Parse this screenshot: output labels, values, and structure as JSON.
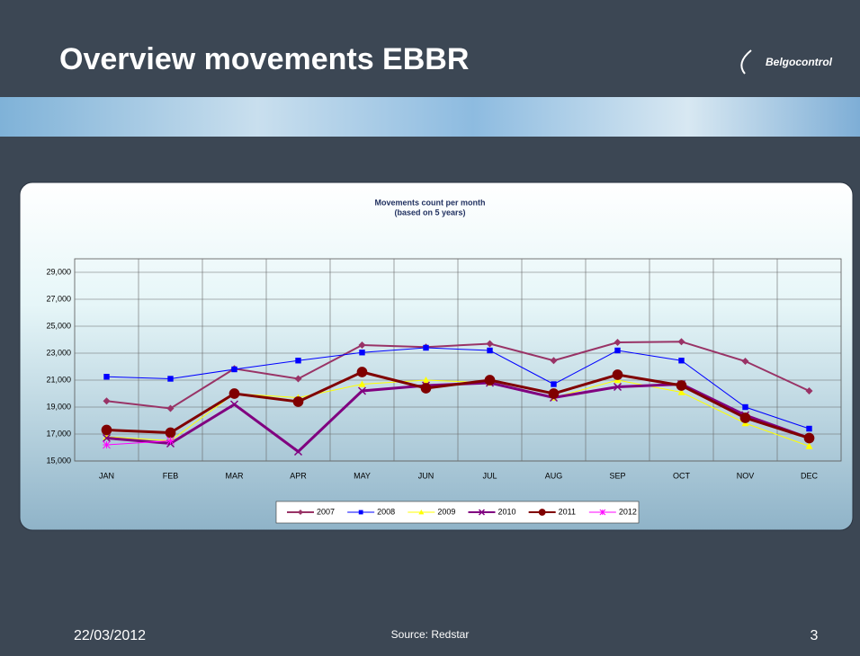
{
  "slide": {
    "title": "Overview movements EBBR",
    "logo": "Belgocontrol",
    "date": "22/03/2012",
    "source": "Source: Redstar",
    "page": "3"
  },
  "chart_data": {
    "type": "line",
    "title": "Movements count per month",
    "subtitle": "(based on 5 years)",
    "categories": [
      "JAN",
      "FEB",
      "MAR",
      "APR",
      "MAY",
      "JUN",
      "JUL",
      "AUG",
      "SEP",
      "OCT",
      "NOV",
      "DEC"
    ],
    "ylim": [
      15000,
      30000
    ],
    "yticks": [
      {
        "value": 15000,
        "label": "15,000"
      },
      {
        "value": 17000,
        "label": "17,000"
      },
      {
        "value": 19000,
        "label": "19,000"
      },
      {
        "value": 21000,
        "label": "21,000"
      },
      {
        "value": 23000,
        "label": "23,000"
      },
      {
        "value": 25000,
        "label": "25,000"
      },
      {
        "value": 27000,
        "label": "27,000"
      },
      {
        "value": 29000,
        "label": "29,000"
      }
    ],
    "grid": true,
    "legend": "bottom",
    "series": [
      {
        "name": "2007",
        "color": "#993366",
        "marker": "diamond",
        "line_width": 2,
        "values": [
          19450,
          18900,
          21850,
          21100,
          23600,
          23450,
          23700,
          22450,
          23800,
          23850,
          22400,
          20200
        ]
      },
      {
        "name": "2008",
        "color": "#0000ff",
        "marker": "square",
        "line_width": 1,
        "values": [
          21250,
          21100,
          21800,
          22450,
          23050,
          23400,
          23200,
          20700,
          23200,
          22450,
          19000,
          17400
        ]
      },
      {
        "name": "2009",
        "color": "#ffff00",
        "marker": "triangle",
        "line_width": 1,
        "values": [
          16800,
          16500,
          20000,
          19700,
          20700,
          21000,
          20800,
          19700,
          21000,
          20100,
          17800,
          16100
        ]
      },
      {
        "name": "2010",
        "color": "#800080",
        "marker": "x",
        "line_width": 3,
        "values": [
          16700,
          16300,
          19200,
          15700,
          20200,
          20600,
          20800,
          19700,
          20500,
          20700,
          18400,
          16700
        ]
      },
      {
        "name": "2011",
        "color": "#800000",
        "marker": "circle",
        "line_width": 3,
        "values": [
          17300,
          17100,
          20000,
          19400,
          21600,
          20400,
          21000,
          20000,
          21400,
          20600,
          18200,
          16700
        ]
      },
      {
        "name": "2012",
        "color": "#ff00ff",
        "marker": "star",
        "line_width": 1,
        "values": [
          16200,
          16500,
          null,
          null,
          null,
          null,
          null,
          null,
          null,
          null,
          null,
          null
        ]
      }
    ]
  }
}
